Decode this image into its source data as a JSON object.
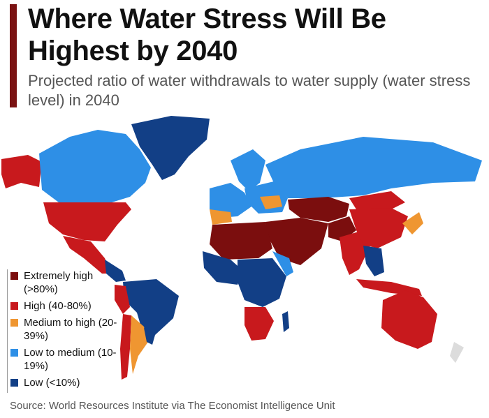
{
  "header": {
    "title": "Where Water Stress Will Be Highest by 2040",
    "subtitle": "Projected ratio of water withdrawals to water supply (water stress level) in 2040"
  },
  "legend": [
    {
      "label": "Extremely high (>80%)",
      "color": "#7b0e0e"
    },
    {
      "label": "High (40-80%)",
      "color": "#c8191d"
    },
    {
      "label": "Medium to high (20-39%)",
      "color": "#ef9631"
    },
    {
      "label": "Low to medium (10-19%)",
      "color": "#2e8fe6"
    },
    {
      "label": "Low (<10%)",
      "color": "#123f86"
    }
  ],
  "footer": {
    "source": "Source: World Resources Institute via The Economist Intelligence Unit"
  }
}
